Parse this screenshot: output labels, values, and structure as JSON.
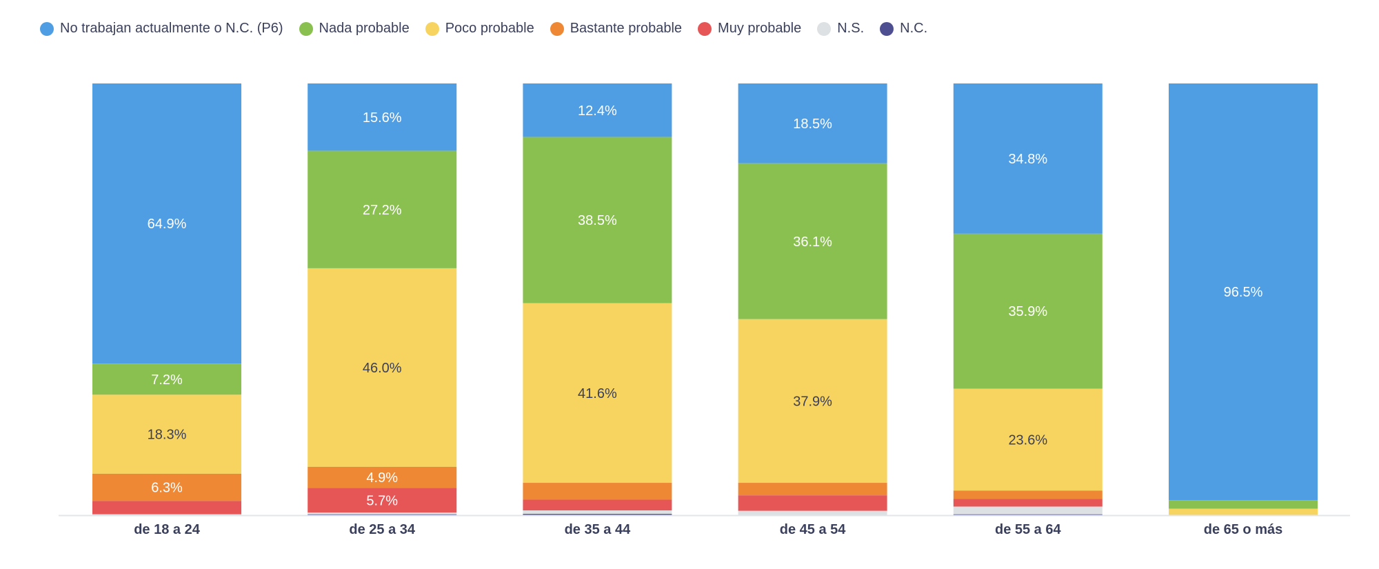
{
  "chart_data": {
    "type": "bar",
    "stacked": true,
    "normalized": true,
    "title": "",
    "xlabel": "",
    "ylabel": "",
    "ylim": [
      0,
      100
    ],
    "grid": false,
    "legend_position": "top-left",
    "categories": [
      "de 18 a 24",
      "de 25 a 34",
      "de 35 a 44",
      "de 45 a 54",
      "de 55 a 64",
      "de 65 o más"
    ],
    "series": [
      {
        "name": "No trabajan actualmente o N.C. (P6)",
        "color": "#4f9de3",
        "values": [
          64.9,
          15.6,
          12.4,
          18.5,
          34.8,
          96.5
        ]
      },
      {
        "name": "Nada probable",
        "color": "#8ac04f",
        "values": [
          7.2,
          27.2,
          38.5,
          36.1,
          35.9,
          2.0
        ]
      },
      {
        "name": "Poco probable",
        "color": "#f7d35f",
        "values": [
          18.3,
          46.0,
          41.6,
          37.9,
          23.6,
          1.5
        ]
      },
      {
        "name": "Bastante probable",
        "color": "#ee8834",
        "values": [
          6.3,
          4.9,
          3.9,
          2.9,
          1.9,
          0.0
        ]
      },
      {
        "name": "Muy probable",
        "color": "#e75657",
        "values": [
          3.1,
          5.7,
          2.5,
          3.6,
          1.8,
          0.0
        ]
      },
      {
        "name": "N.S.",
        "color": "#dde1e3",
        "values": [
          0.2,
          0.4,
          0.8,
          1.0,
          1.8,
          0.0
        ]
      },
      {
        "name": "N.C.",
        "color": "#4e4f90",
        "values": [
          0.0,
          0.2,
          0.3,
          0.0,
          0.2,
          0.0
        ]
      }
    ],
    "data_labels": [
      [
        "64.9%",
        "7.2%",
        "18.3%",
        "6.3%",
        "",
        "",
        ""
      ],
      [
        "15.6%",
        "27.2%",
        "46.0%",
        "4.9%",
        "5.7%",
        "",
        ""
      ],
      [
        "12.4%",
        "38.5%",
        "41.6%",
        "",
        "",
        "",
        ""
      ],
      [
        "18.5%",
        "36.1%",
        "37.9%",
        "",
        "",
        "",
        ""
      ],
      [
        "34.8%",
        "35.9%",
        "23.6%",
        "",
        "",
        "",
        ""
      ],
      [
        "96.5%",
        "",
        "",
        "",
        "",
        "",
        ""
      ]
    ]
  }
}
